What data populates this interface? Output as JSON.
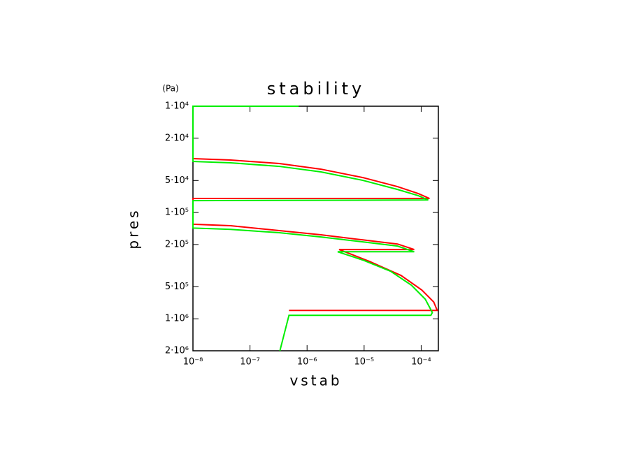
{
  "chart_data": {
    "type": "line",
    "title": "stability",
    "x_label": "vstab",
    "y_label": "pres",
    "y_unit": "(Pa)",
    "xscale": "log",
    "yscale": "log",
    "y_inverted": true,
    "xlim": [
      1e-08,
      0.0002
    ],
    "ylim": [
      10000,
      2000000
    ],
    "xticks": [
      {
        "value": 1e-08,
        "label": "10⁻⁸"
      },
      {
        "value": 1e-07,
        "label": "10⁻⁷"
      },
      {
        "value": 1e-06,
        "label": "10⁻⁶"
      },
      {
        "value": 1e-05,
        "label": "10⁻⁵"
      },
      {
        "value": 0.0001,
        "label": "10⁻⁴"
      }
    ],
    "yticks": [
      {
        "value": 10000,
        "label": "1·10⁴"
      },
      {
        "value": 20000,
        "label": "2·10⁴"
      },
      {
        "value": 50000,
        "label": "5·10⁴"
      },
      {
        "value": 100000,
        "label": "1·10⁵"
      },
      {
        "value": 200000,
        "label": "2·10⁵"
      },
      {
        "value": 500000,
        "label": "5·10⁵"
      },
      {
        "value": 1000000,
        "label": "1·10⁶"
      },
      {
        "value": 2000000,
        "label": "2·10⁶"
      }
    ],
    "series": [
      {
        "color": "#ff0000",
        "x": [
          1e-08,
          4.56e-08,
          3.25e-07,
          1.75e-06,
          9.46e-06,
          3.85e-05,
          8.94e-05,
          0.00014,
          1e-08,
          1e-08,
          4.56e-08,
          3.25e-07,
          1.75e-06,
          9.46e-06,
          3.85e-05,
          7.55e-05,
          3.64e-06,
          1.25e-05,
          4.43e-05,
          0.000103,
          0.000166,
          0.000191,
          4.82e-07
        ],
        "values": [
          31100,
          32100,
          34600,
          39100,
          46900,
          57100,
          66400,
          73800,
          73800,
          129000,
          133000,
          148000,
          162000,
          181000,
          198000,
          223000,
          223000,
          289000,
          391000,
          537000,
          695000,
          834000,
          834000
        ]
      },
      {
        "color": "#00ee00",
        "x": [
          7.14e-07,
          1e-08,
          1e-08,
          4.56e-08,
          3.25e-07,
          1.75e-06,
          9.46e-06,
          3.85e-05,
          8.94e-05,
          0.000133,
          1e-08,
          1e-08,
          4.56e-08,
          3.25e-07,
          1.75e-06,
          9.46e-06,
          3.85e-05,
          7.55e-05,
          3.44e-06,
          9.46e-06,
          2.91e-05,
          6.75e-05,
          0.000118,
          0.000157,
          0.000148,
          4.82e-07,
          3.34e-07
        ],
        "values": [
          10000,
          10000,
          33100,
          34100,
          36800,
          41500,
          49800,
          60700,
          69500,
          76200,
          77300,
          140000,
          144000,
          155000,
          170000,
          189000,
          207000,
          234000,
          234000,
          280000,
          357000,
          483000,
          654000,
          873000,
          927000,
          927000,
          2000000
        ]
      }
    ]
  }
}
